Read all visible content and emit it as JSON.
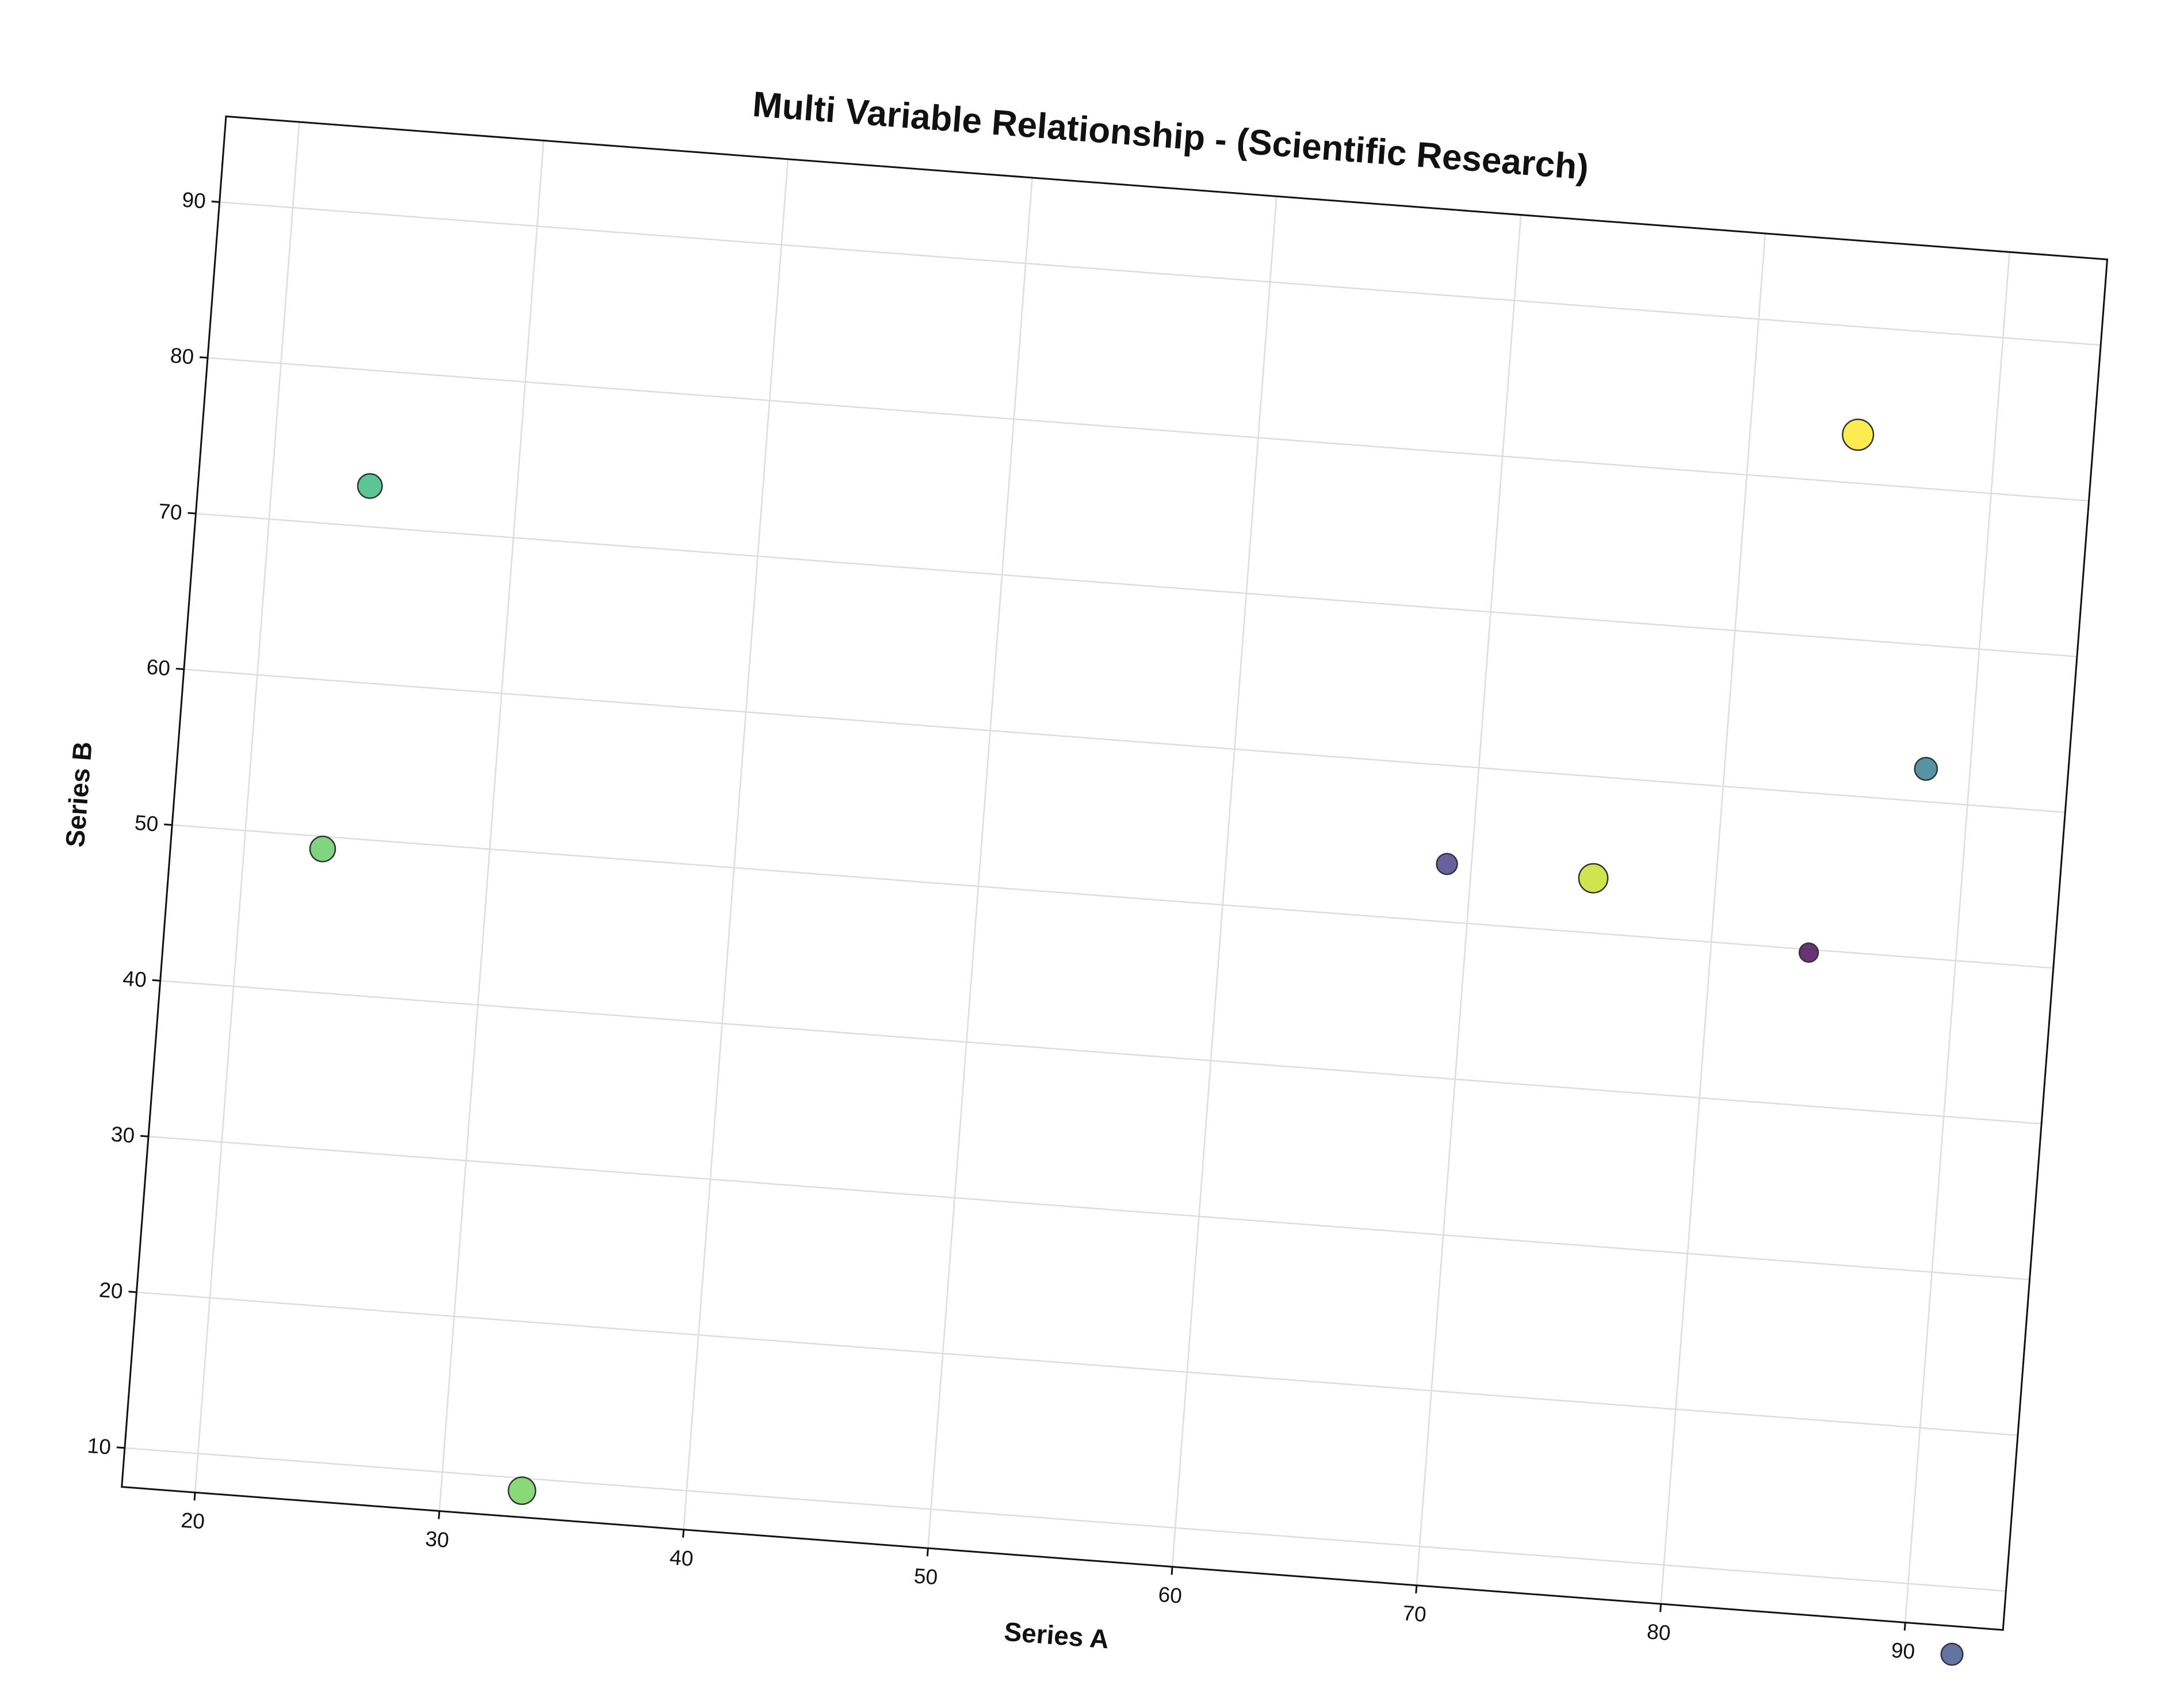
{
  "chart_data": {
    "type": "scatter",
    "title": "Multi Variable Relationship - (Scientific Research)",
    "xlabel": "Series A",
    "ylabel": "Series B",
    "xlim": [
      17,
      94
    ],
    "ylim": [
      7.5,
      95.5
    ],
    "xticks": [
      20,
      30,
      40,
      50,
      60,
      70,
      80,
      90
    ],
    "yticks": [
      10,
      20,
      30,
      40,
      50,
      60,
      70,
      80,
      90
    ],
    "grid": true,
    "colormap": "viridis",
    "points": [
      {
        "x": 24.0,
        "y": 72.6,
        "size": 0.45,
        "color": "#35b779"
      },
      {
        "x": 23.2,
        "y": 49.2,
        "size": 0.5,
        "color": "#5ec962"
      },
      {
        "x": 33.3,
        "y": 9.2,
        "size": 0.6,
        "color": "#6ece58"
      },
      {
        "x": 69.0,
        "y": 53.7,
        "size": 0.25,
        "color": "#443983"
      },
      {
        "x": 75.0,
        "y": 53.5,
        "size": 0.7,
        "color": "#c2df23"
      },
      {
        "x": 84.4,
        "y": 83.1,
        "size": 0.8,
        "color": "#fde725"
      },
      {
        "x": 84.0,
        "y": 49.8,
        "size": 0.15,
        "color": "#440154"
      },
      {
        "x": 88.2,
        "y": 62.1,
        "size": 0.35,
        "color": "#2a788e"
      },
      {
        "x": 92.0,
        "y": 5.7,
        "size": 0.3,
        "color": "#3b528b"
      }
    ]
  }
}
